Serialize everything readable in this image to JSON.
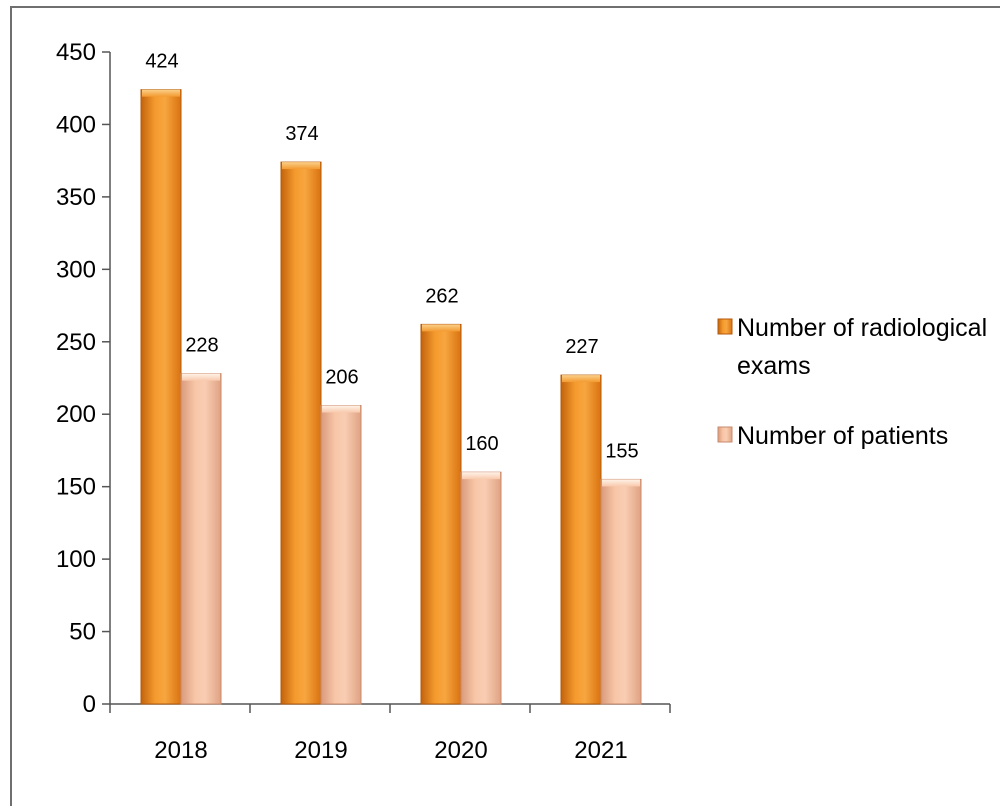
{
  "chart_data": {
    "type": "bar",
    "title": "",
    "xlabel": "",
    "ylabel": "",
    "categories": [
      "2018",
      "2019",
      "2020",
      "2021"
    ],
    "series": [
      {
        "name": "Number of radiological exams",
        "values": [
          424,
          374,
          262,
          227
        ],
        "color": "#f08a1c"
      },
      {
        "name": "Number of patients",
        "values": [
          228,
          206,
          160,
          155
        ],
        "color": "#f6bb9a"
      }
    ],
    "yticks": [
      0,
      50,
      100,
      150,
      200,
      250,
      300,
      350,
      400,
      450
    ],
    "ylim": [
      0,
      450
    ],
    "grid": false,
    "legend": "right",
    "legend_labels": {
      "series1_line1": "Number of radiological",
      "series1_line2": "exams",
      "series2": "Number of patients"
    }
  }
}
